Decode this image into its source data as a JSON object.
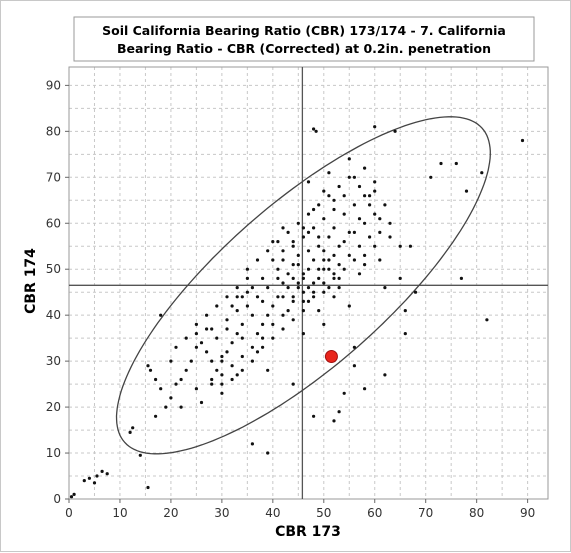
{
  "chart_data": {
    "type": "scatter",
    "title_lines": [
      "Soil California Bearing Ratio (CBR) 173/174 - 7. California",
      "Bearing Ratio - CBR (Corrected) at 0.2in. penetration"
    ],
    "xlabel": "CBR 173",
    "ylabel": "CBR 174",
    "xlim": [
      0,
      94
    ],
    "ylim": [
      0,
      94
    ],
    "x_ticks": [
      0,
      10,
      20,
      30,
      40,
      50,
      60,
      70,
      80,
      90
    ],
    "y_ticks": [
      0,
      10,
      20,
      30,
      40,
      50,
      60,
      70,
      80,
      90
    ],
    "grid": true,
    "reference_lines": {
      "x_mean": 45.8,
      "y_mean": 46.5
    },
    "ellipse": {
      "cx": 46,
      "cy": 46.5,
      "semi_major": 49,
      "semi_minor": 17,
      "angle_deg": 45
    },
    "highlight_point": {
      "x": 51.5,
      "y": 31,
      "color": "#e8251c"
    },
    "colors": {
      "points": "#111111",
      "grid": "#c8c8c8",
      "lines": "#555555",
      "ellipse": "#444444"
    },
    "series": [
      {
        "points": [
          [
            0.5,
            0.5
          ],
          [
            1,
            1
          ],
          [
            3,
            4
          ],
          [
            4,
            4.5
          ],
          [
            5,
            3.5
          ],
          [
            5.5,
            5
          ],
          [
            6.5,
            6
          ],
          [
            7.5,
            5.5
          ],
          [
            12,
            14.5
          ],
          [
            12.5,
            15.5
          ],
          [
            14,
            9.5
          ],
          [
            15.5,
            2.5
          ],
          [
            15.5,
            29
          ],
          [
            17,
            18
          ],
          [
            18,
            40
          ],
          [
            48,
            80.5
          ],
          [
            48.5,
            80
          ],
          [
            60,
            81
          ],
          [
            64,
            80
          ],
          [
            89,
            78
          ],
          [
            76,
            73
          ],
          [
            73,
            73
          ],
          [
            78,
            67
          ],
          [
            71,
            70
          ],
          [
            81,
            71
          ],
          [
            82,
            39
          ],
          [
            77,
            48
          ],
          [
            66,
            36
          ],
          [
            39,
            10
          ],
          [
            36,
            12
          ],
          [
            52,
            17
          ],
          [
            48,
            18
          ],
          [
            53,
            19
          ],
          [
            54,
            23
          ],
          [
            44,
            25
          ],
          [
            58,
            24
          ],
          [
            56,
            29
          ],
          [
            62,
            27
          ],
          [
            56,
            33
          ],
          [
            66,
            41
          ],
          [
            68,
            45
          ],
          [
            65,
            48
          ],
          [
            61,
            52
          ],
          [
            67,
            55
          ],
          [
            22,
            20
          ],
          [
            26,
            21
          ],
          [
            25,
            24
          ],
          [
            28,
            26
          ],
          [
            30,
            23
          ],
          [
            33,
            27
          ],
          [
            30,
            31
          ],
          [
            34,
            35
          ],
          [
            28,
            37
          ],
          [
            31,
            39
          ],
          [
            33,
            44
          ],
          [
            35,
            48
          ],
          [
            37,
            32
          ],
          [
            39,
            28
          ],
          [
            38,
            43
          ],
          [
            41,
            50
          ],
          [
            40,
            56
          ],
          [
            42,
            59
          ],
          [
            47,
            69
          ],
          [
            51,
            71
          ],
          [
            55,
            74
          ],
          [
            59,
            66
          ],
          [
            61,
            61
          ],
          [
            63,
            57
          ],
          [
            65,
            55
          ],
          [
            58,
            53
          ],
          [
            57,
            49
          ],
          [
            62,
            46
          ],
          [
            55,
            42
          ],
          [
            52,
            44
          ],
          [
            50,
            38
          ],
          [
            46,
            36
          ],
          [
            49,
            41
          ],
          [
            53,
            48
          ],
          [
            45,
            46
          ],
          [
            44,
            44
          ],
          [
            46,
            48
          ],
          [
            47,
            50
          ],
          [
            43,
            41
          ],
          [
            48,
            52
          ],
          [
            50,
            54
          ],
          [
            51,
            57
          ],
          [
            52,
            59
          ],
          [
            49,
            55
          ],
          [
            47,
            58
          ],
          [
            45,
            53
          ],
          [
            44,
            51
          ],
          [
            42,
            47
          ],
          [
            41,
            44
          ],
          [
            40,
            42
          ],
          [
            39,
            40
          ],
          [
            38,
            38
          ],
          [
            37,
            36
          ],
          [
            36,
            40
          ],
          [
            35,
            42
          ],
          [
            34,
            38
          ],
          [
            33,
            36
          ],
          [
            32,
            34
          ],
          [
            31,
            32
          ],
          [
            30,
            30
          ],
          [
            29,
            28
          ],
          [
            28,
            30
          ],
          [
            27,
            32
          ],
          [
            26,
            34
          ],
          [
            25,
            36
          ],
          [
            24,
            30
          ],
          [
            23,
            28
          ],
          [
            22,
            26
          ],
          [
            21,
            25
          ],
          [
            20,
            22
          ],
          [
            19,
            20
          ],
          [
            18,
            24
          ],
          [
            17,
            26
          ],
          [
            16,
            28
          ],
          [
            20,
            30
          ],
          [
            21,
            33
          ],
          [
            23,
            35
          ],
          [
            25,
            38
          ],
          [
            27,
            40
          ],
          [
            29,
            42
          ],
          [
            31,
            44
          ],
          [
            33,
            46
          ],
          [
            35,
            50
          ],
          [
            37,
            52
          ],
          [
            39,
            54
          ],
          [
            41,
            56
          ],
          [
            43,
            58
          ],
          [
            45,
            60
          ],
          [
            47,
            62
          ],
          [
            49,
            64
          ],
          [
            51,
            66
          ],
          [
            53,
            68
          ],
          [
            55,
            70
          ],
          [
            57,
            68
          ],
          [
            59,
            64
          ],
          [
            60,
            62
          ],
          [
            58,
            60
          ],
          [
            56,
            58
          ],
          [
            54,
            56
          ],
          [
            52,
            53
          ],
          [
            50,
            50
          ],
          [
            48,
            47
          ],
          [
            46,
            45
          ],
          [
            44,
            43
          ],
          [
            42,
            40
          ],
          [
            40,
            38
          ],
          [
            38,
            35
          ],
          [
            36,
            33
          ],
          [
            34,
            31
          ],
          [
            32,
            29
          ],
          [
            30,
            27
          ],
          [
            28,
            25
          ],
          [
            42,
            52
          ],
          [
            44,
            55
          ],
          [
            46,
            57
          ],
          [
            48,
            59
          ],
          [
            50,
            61
          ],
          [
            52,
            63
          ],
          [
            54,
            62
          ],
          [
            56,
            64
          ],
          [
            58,
            66
          ],
          [
            60,
            67
          ],
          [
            49,
            48
          ],
          [
            51,
            46
          ],
          [
            53,
            51
          ],
          [
            55,
            53
          ],
          [
            57,
            55
          ],
          [
            59,
            57
          ],
          [
            61,
            58
          ],
          [
            63,
            60
          ],
          [
            43,
            49
          ],
          [
            45,
            51
          ],
          [
            47,
            54
          ],
          [
            49,
            57
          ],
          [
            51,
            52
          ],
          [
            53,
            55
          ],
          [
            55,
            58
          ],
          [
            57,
            61
          ],
          [
            39,
            46
          ],
          [
            37,
            44
          ],
          [
            35,
            45
          ],
          [
            33,
            41
          ],
          [
            31,
            37
          ],
          [
            29,
            35
          ],
          [
            27,
            37
          ],
          [
            25,
            33
          ],
          [
            46,
            43
          ],
          [
            48,
            45
          ],
          [
            50,
            47
          ],
          [
            52,
            49
          ],
          [
            54,
            50
          ],
          [
            56,
            52
          ],
          [
            58,
            51
          ],
          [
            60,
            55
          ],
          [
            44,
            39
          ],
          [
            42,
            37
          ],
          [
            40,
            35
          ],
          [
            38,
            33
          ],
          [
            36,
            30
          ],
          [
            34,
            28
          ],
          [
            32,
            26
          ],
          [
            30,
            25
          ],
          [
            45,
            47
          ],
          [
            46,
            49
          ],
          [
            47,
            46
          ],
          [
            48,
            44
          ],
          [
            44,
            48
          ],
          [
            43,
            46
          ],
          [
            42,
            44
          ],
          [
            41,
            48
          ],
          [
            50,
            52
          ],
          [
            51,
            50
          ],
          [
            52,
            48
          ],
          [
            53,
            46
          ],
          [
            49,
            50
          ],
          [
            50,
            45
          ],
          [
            47,
            43
          ],
          [
            46,
            41
          ],
          [
            38,
            48
          ],
          [
            36,
            46
          ],
          [
            34,
            44
          ],
          [
            32,
            42
          ],
          [
            40,
            52
          ],
          [
            42,
            54
          ],
          [
            44,
            56
          ],
          [
            46,
            59
          ],
          [
            54,
            66
          ],
          [
            52,
            65
          ],
          [
            50,
            67
          ],
          [
            48,
            63
          ],
          [
            56,
            70
          ],
          [
            58,
            72
          ],
          [
            60,
            69
          ],
          [
            62,
            64
          ]
        ]
      }
    ]
  }
}
